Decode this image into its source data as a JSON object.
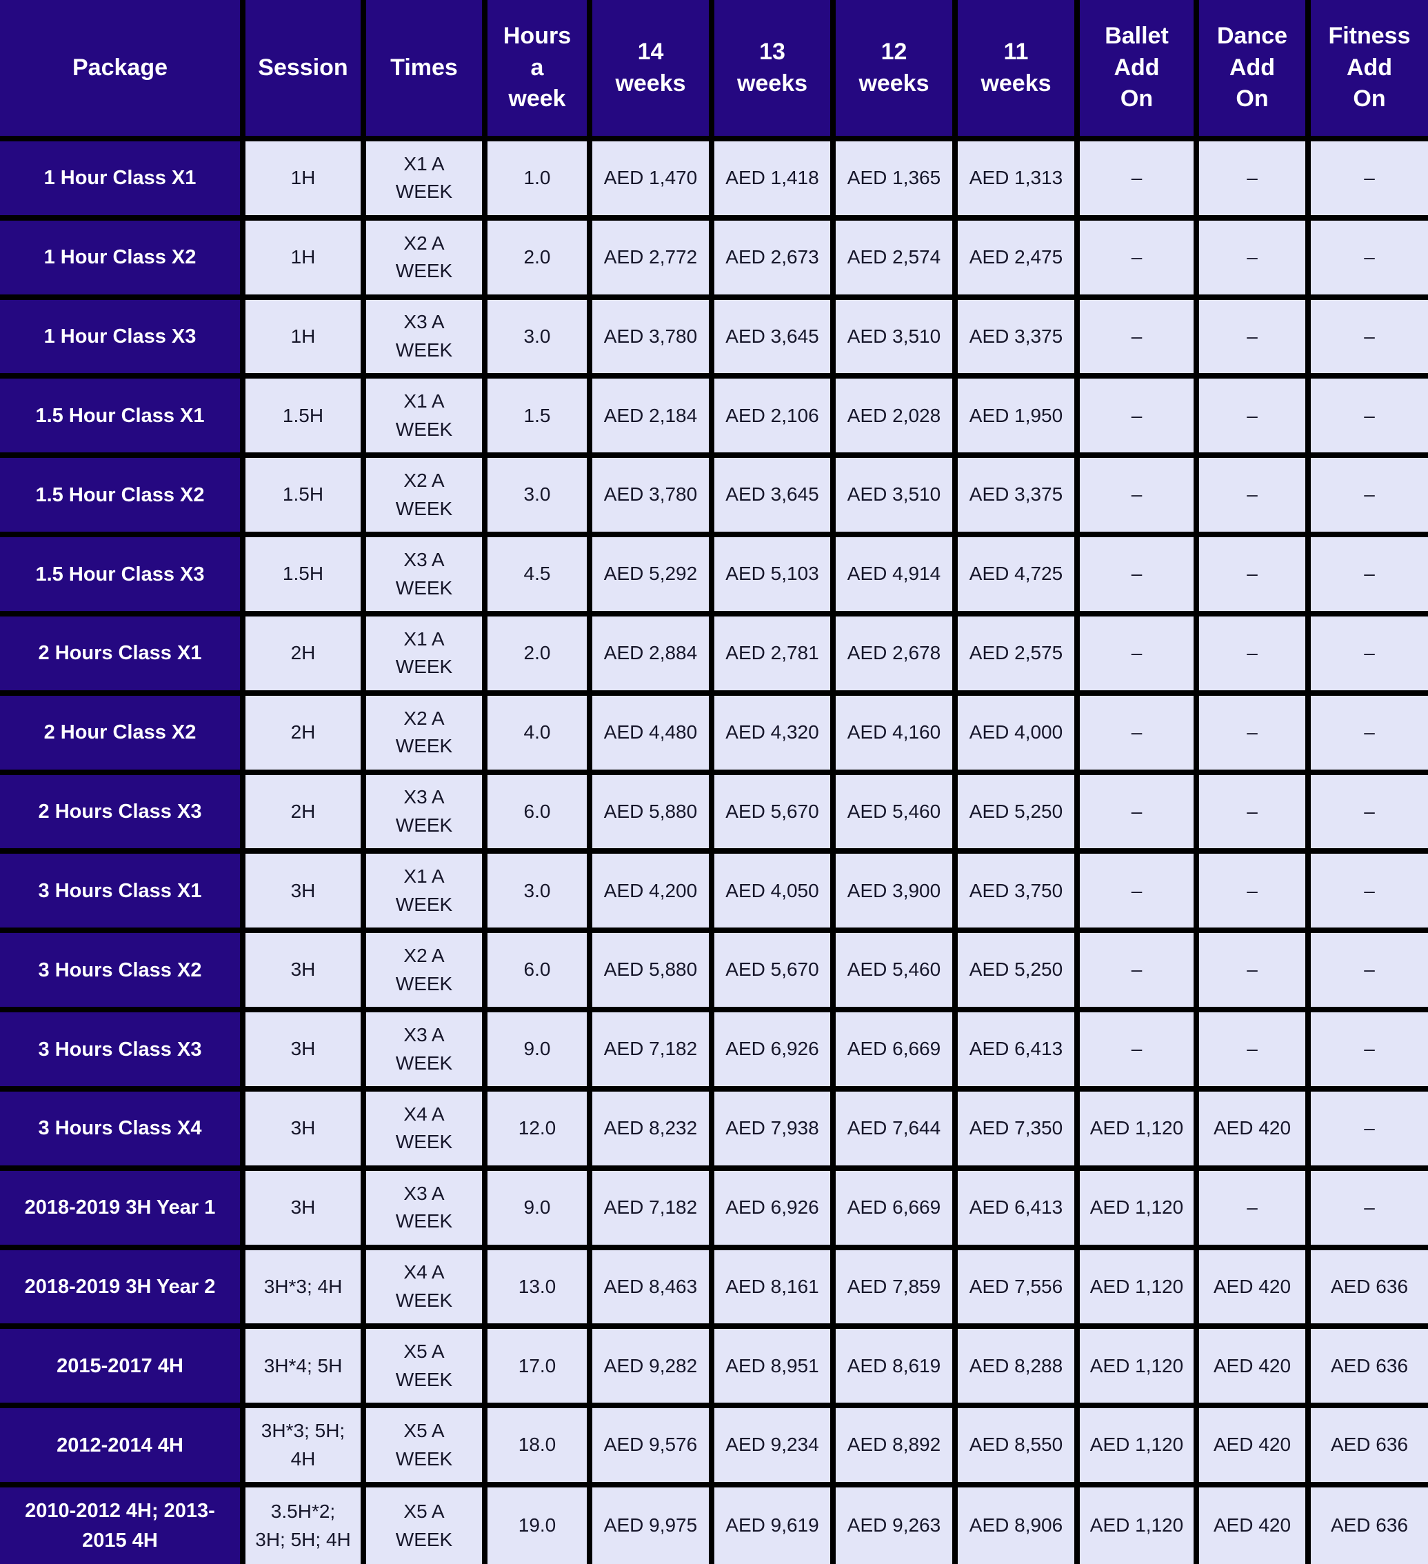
{
  "colors": {
    "header_bg": "#250881",
    "cell_bg": "#e3e5f8",
    "grid": "#000000",
    "header_text": "#ffffff",
    "cell_text": "#16162a"
  },
  "columns_display": [
    "Package",
    "Session",
    "Times",
    "Hours\na\nweek",
    "14\nweeks",
    "13\nweeks",
    "12\nweeks",
    "11\nweeks",
    "Ballet\nAdd\nOn",
    "Dance\nAdd\nOn",
    "Fitness\nAdd\nOn"
  ],
  "chart_data": {
    "type": "table",
    "title": "Class packages pricing (AED) by number of weeks",
    "columns": [
      "Package",
      "Session",
      "Times",
      "Hours a week",
      "14 weeks",
      "13 weeks",
      "12 weeks",
      "11 weeks",
      "Ballet Add On",
      "Dance Add On",
      "Fitness Add On"
    ],
    "rows": [
      [
        "1 Hour Class X1",
        "1H",
        "X1 A WEEK",
        "1.0",
        "AED 1,470",
        "AED 1,418",
        "AED 1,365",
        "AED 1,313",
        "-",
        "-",
        "-"
      ],
      [
        "1 Hour Class X2",
        "1H",
        "X2 A WEEK",
        "2.0",
        "AED 2,772",
        "AED 2,673",
        "AED 2,574",
        "AED 2,475",
        "-",
        "-",
        "-"
      ],
      [
        "1 Hour Class X3",
        "1H",
        "X3 A WEEK",
        "3.0",
        "AED 3,780",
        "AED 3,645",
        "AED 3,510",
        "AED 3,375",
        "-",
        "-",
        "-"
      ],
      [
        "1.5 Hour Class X1",
        "1.5H",
        "X1 A WEEK",
        "1.5",
        "AED 2,184",
        "AED 2,106",
        "AED 2,028",
        "AED 1,950",
        "-",
        "-",
        "-"
      ],
      [
        "1.5 Hour Class X2",
        "1.5H",
        "X2 A WEEK",
        "3.0",
        "AED 3,780",
        "AED 3,645",
        "AED 3,510",
        "AED 3,375",
        "-",
        "-",
        "-"
      ],
      [
        "1.5 Hour Class X3",
        "1.5H",
        "X3 A WEEK",
        "4.5",
        "AED 5,292",
        "AED 5,103",
        "AED 4,914",
        "AED 4,725",
        "-",
        "-",
        "-"
      ],
      [
        "2 Hours Class X1",
        "2H",
        "X1 A WEEK",
        "2.0",
        "AED 2,884",
        "AED 2,781",
        "AED 2,678",
        "AED 2,575",
        "-",
        "-",
        "-"
      ],
      [
        "2 Hour Class X2",
        "2H",
        "X2 A WEEK",
        "4.0",
        "AED 4,480",
        "AED 4,320",
        "AED 4,160",
        "AED 4,000",
        "-",
        "-",
        "-"
      ],
      [
        "2 Hours Class X3",
        "2H",
        "X3 A WEEK",
        "6.0",
        "AED 5,880",
        "AED 5,670",
        "AED 5,460",
        "AED 5,250",
        "-",
        "-",
        "-"
      ],
      [
        "3 Hours Class X1",
        "3H",
        "X1 A WEEK",
        "3.0",
        "AED 4,200",
        "AED 4,050",
        "AED 3,900",
        "AED 3,750",
        "-",
        "-",
        "-"
      ],
      [
        "3 Hours Class X2",
        "3H",
        "X2 A WEEK",
        "6.0",
        "AED 5,880",
        "AED 5,670",
        "AED 5,460",
        "AED 5,250",
        "-",
        "-",
        "-"
      ],
      [
        "3 Hours Class X3",
        "3H",
        "X3 A WEEK",
        "9.0",
        "AED 7,182",
        "AED 6,926",
        "AED 6,669",
        "AED 6,413",
        "-",
        "-",
        "-"
      ],
      [
        "3 Hours Class X4",
        "3H",
        "X4 A WEEK",
        "12.0",
        "AED 8,232",
        "AED 7,938",
        "AED 7,644",
        "AED 7,350",
        "AED 1,120",
        "AED 420",
        "-"
      ],
      [
        "2018-2019 3H Year 1",
        "3H",
        "X3 A WEEK",
        "9.0",
        "AED 7,182",
        "AED 6,926",
        "AED 6,669",
        "AED 6,413",
        "AED 1,120",
        "-",
        "-"
      ],
      [
        "2018-2019 3H Year 2",
        "3H*3; 4H",
        "X4 A WEEK",
        "13.0",
        "AED 8,463",
        "AED 8,161",
        "AED 7,859",
        "AED 7,556",
        "AED 1,120",
        "AED 420",
        "AED 636"
      ],
      [
        "2015-2017 4H",
        "3H*4; 5H",
        "X5 A WEEK",
        "17.0",
        "AED 9,282",
        "AED 8,951",
        "AED 8,619",
        "AED 8,288",
        "AED 1,120",
        "AED 420",
        "AED 636"
      ],
      [
        "2012-2014 4H",
        "3H*3; 5H; 4H",
        "X5 A WEEK",
        "18.0",
        "AED 9,576",
        "AED 9,234",
        "AED 8,892",
        "AED 8,550",
        "AED 1,120",
        "AED 420",
        "AED 636"
      ],
      [
        "2010-2012 4H; 2013-2015 4H",
        "3.5H*2; 3H; 5H; 4H",
        "X5 A WEEK",
        "19.0",
        "AED 9,975",
        "AED 9,619",
        "AED 9,263",
        "AED 8,906",
        "AED 1,120",
        "AED 420",
        "AED 636"
      ]
    ]
  }
}
